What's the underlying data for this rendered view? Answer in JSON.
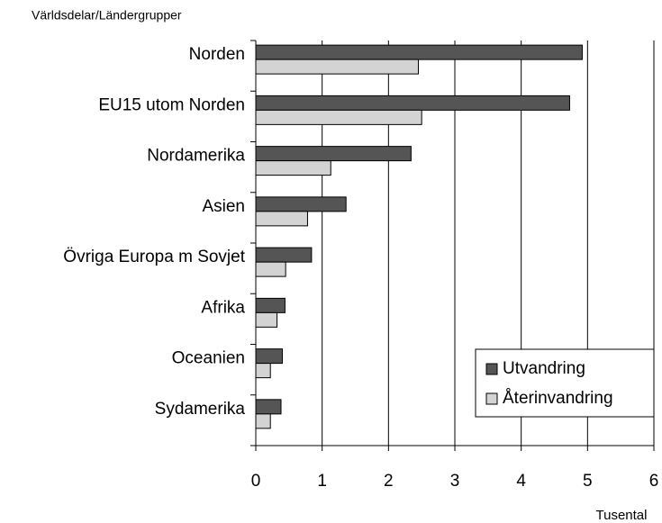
{
  "chart_data": {
    "type": "bar",
    "orientation": "horizontal",
    "subtitle": "Världsdelar/Ländergrupper",
    "xlabel": "Tusental",
    "categories": [
      "Norden",
      "EU15 utom Norden",
      "Nordamerika",
      "Asien",
      "Övriga Europa m Sovjet",
      "Afrika",
      "Oceanien",
      "Sydamerika"
    ],
    "series": [
      {
        "name": "Utvandring",
        "color": "#555555",
        "values": [
          4.92,
          4.73,
          2.34,
          1.36,
          0.84,
          0.44,
          0.4,
          0.38
        ]
      },
      {
        "name": "Återinvandring",
        "color": "#d3d3d3",
        "values": [
          2.45,
          2.5,
          1.13,
          0.78,
          0.45,
          0.32,
          0.22,
          0.22
        ]
      }
    ],
    "xlim": [
      0,
      6
    ],
    "xticks": [
      0,
      1,
      2,
      3,
      4,
      5,
      6
    ],
    "grid": true,
    "legend": "lower right"
  }
}
